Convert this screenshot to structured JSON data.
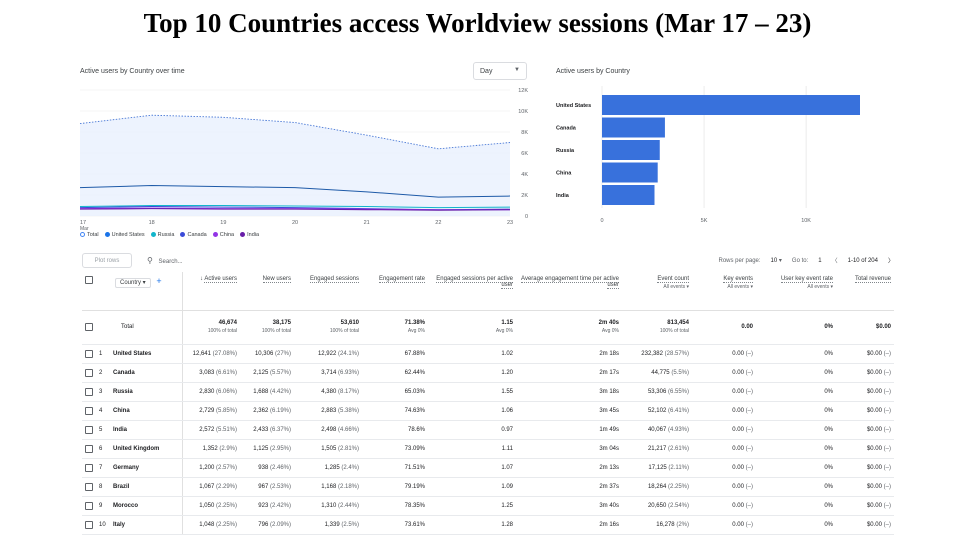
{
  "title": "Top 10 Countries access Worldview sessions (Mar 17 – 23)",
  "line_card": {
    "label": "Active users by Country over time",
    "dropdown": "Day",
    "y_ticks": [
      "12K",
      "10K",
      "8K",
      "6K",
      "4K",
      "2K",
      "0"
    ],
    "x_ticks": [
      "17",
      "18",
      "19",
      "20",
      "21",
      "22",
      "23"
    ],
    "x_month": "Mar",
    "legend": [
      {
        "label": "Total",
        "color": "#ffffff",
        "stroke": "#4285f4"
      },
      {
        "label": "United States",
        "color": "#1a73e8"
      },
      {
        "label": "Russia",
        "color": "#12b5cb"
      },
      {
        "label": "Canada",
        "color": "#3b4bd8"
      },
      {
        "label": "China",
        "color": "#9334e6"
      },
      {
        "label": "India",
        "color": "#681da8"
      }
    ]
  },
  "bar_card": {
    "label": "Active users by Country",
    "x_ticks": [
      "0",
      "5K",
      "10K"
    ]
  },
  "chart_data": [
    {
      "type": "line",
      "x": [
        "17",
        "18",
        "19",
        "20",
        "21",
        "22",
        "23"
      ],
      "ylim": [
        0,
        12000
      ],
      "series": [
        {
          "name": "Total",
          "values": [
            8800,
            9600,
            9400,
            8900,
            7700,
            6400,
            7000
          ]
        },
        {
          "name": "United States",
          "values": [
            2700,
            2900,
            2800,
            2700,
            2300,
            1800,
            1900
          ]
        },
        {
          "name": "Russia",
          "values": [
            900,
            1000,
            1000,
            950,
            900,
            800,
            850
          ]
        },
        {
          "name": "Canada",
          "values": [
            800,
            900,
            850,
            800,
            700,
            600,
            650
          ]
        },
        {
          "name": "China",
          "values": [
            700,
            750,
            700,
            700,
            650,
            600,
            600
          ]
        },
        {
          "name": "India",
          "values": [
            650,
            700,
            650,
            650,
            600,
            550,
            600
          ]
        }
      ]
    },
    {
      "type": "bar",
      "categories": [
        "United States",
        "Canada",
        "Russia",
        "China",
        "India"
      ],
      "values": [
        12641,
        3083,
        2830,
        2729,
        2572
      ],
      "xlim": [
        0,
        12641
      ]
    }
  ],
  "toolbar": {
    "plot_rows": "Plot rows",
    "search_placeholder": "Search...",
    "rows_per_page_label": "Rows per page:",
    "rows_per_page": "10",
    "goto_label": "Go to:",
    "goto_value": "1",
    "range": "1-10 of 204"
  },
  "table": {
    "dimension": "Country",
    "headers": {
      "active_users": "Active users",
      "new_users": "New users",
      "engaged_sessions": "Engaged sessions",
      "engagement_rate": "Engagement rate",
      "engaged_per_user": "Engaged sessions per active user",
      "avg_engagement": "Average engagement time per active user",
      "event_count": "Event count",
      "event_count_sub": "All events",
      "key_events": "Key events",
      "key_events_sub": "All events",
      "user_key_rate": "User key event rate",
      "user_key_sub": "All events",
      "total_revenue": "Total revenue"
    },
    "total": {
      "label": "Total",
      "active_users": "46,674",
      "active_users_sub": "100% of total",
      "new_users": "38,175",
      "new_users_sub": "100% of total",
      "engaged_sessions": "53,610",
      "engaged_sessions_sub": "100% of total",
      "engagement_rate": "71.38%",
      "engagement_rate_sub": "Avg 0%",
      "engaged_per_user": "1.15",
      "engaged_per_user_sub": "Avg 0%",
      "avg_engagement": "2m 40s",
      "avg_engagement_sub": "Avg 0%",
      "event_count": "813,454",
      "event_count_sub": "100% of total",
      "key_events": "0.00",
      "user_key_rate": "0%",
      "total_revenue": "$0.00"
    },
    "rows": [
      {
        "n": "1",
        "country": "United States",
        "au": "12,641",
        "au_p": "(27.08%)",
        "nu": "10,306",
        "nu_p": "(27%)",
        "es": "12,922",
        "es_p": "(24.1%)",
        "er": "67.88%",
        "epu": "1.02",
        "aet": "2m 18s",
        "ec": "232,382",
        "ec_p": "(28.57%)",
        "ke": "0.00",
        "ke_p": "(–)",
        "ukr": "0%",
        "tr": "$0.00",
        "tr_p": "(–)"
      },
      {
        "n": "2",
        "country": "Canada",
        "au": "3,083",
        "au_p": "(6.61%)",
        "nu": "2,125",
        "nu_p": "(5.57%)",
        "es": "3,714",
        "es_p": "(6.93%)",
        "er": "62.44%",
        "epu": "1.20",
        "aet": "2m 17s",
        "ec": "44,775",
        "ec_p": "(5.5%)",
        "ke": "0.00",
        "ke_p": "(–)",
        "ukr": "0%",
        "tr": "$0.00",
        "tr_p": "(–)"
      },
      {
        "n": "3",
        "country": "Russia",
        "au": "2,830",
        "au_p": "(6.06%)",
        "nu": "1,688",
        "nu_p": "(4.42%)",
        "es": "4,380",
        "es_p": "(8.17%)",
        "er": "65.03%",
        "epu": "1.55",
        "aet": "3m 18s",
        "ec": "53,306",
        "ec_p": "(6.55%)",
        "ke": "0.00",
        "ke_p": "(–)",
        "ukr": "0%",
        "tr": "$0.00",
        "tr_p": "(–)"
      },
      {
        "n": "4",
        "country": "China",
        "au": "2,729",
        "au_p": "(5.85%)",
        "nu": "2,362",
        "nu_p": "(6.19%)",
        "es": "2,883",
        "es_p": "(5.38%)",
        "er": "74.63%",
        "epu": "1.06",
        "aet": "3m 45s",
        "ec": "52,102",
        "ec_p": "(6.41%)",
        "ke": "0.00",
        "ke_p": "(–)",
        "ukr": "0%",
        "tr": "$0.00",
        "tr_p": "(–)"
      },
      {
        "n": "5",
        "country": "India",
        "au": "2,572",
        "au_p": "(5.51%)",
        "nu": "2,433",
        "nu_p": "(6.37%)",
        "es": "2,498",
        "es_p": "(4.66%)",
        "er": "78.6%",
        "epu": "0.97",
        "aet": "1m 49s",
        "ec": "40,067",
        "ec_p": "(4.93%)",
        "ke": "0.00",
        "ke_p": "(–)",
        "ukr": "0%",
        "tr": "$0.00",
        "tr_p": "(–)"
      },
      {
        "n": "6",
        "country": "United Kingdom",
        "au": "1,352",
        "au_p": "(2.9%)",
        "nu": "1,125",
        "nu_p": "(2.95%)",
        "es": "1,505",
        "es_p": "(2.81%)",
        "er": "73.09%",
        "epu": "1.11",
        "aet": "3m 04s",
        "ec": "21,217",
        "ec_p": "(2.61%)",
        "ke": "0.00",
        "ke_p": "(–)",
        "ukr": "0%",
        "tr": "$0.00",
        "tr_p": "(–)"
      },
      {
        "n": "7",
        "country": "Germany",
        "au": "1,200",
        "au_p": "(2.57%)",
        "nu": "938",
        "nu_p": "(2.46%)",
        "es": "1,285",
        "es_p": "(2.4%)",
        "er": "71.51%",
        "epu": "1.07",
        "aet": "2m 13s",
        "ec": "17,125",
        "ec_p": "(2.11%)",
        "ke": "0.00",
        "ke_p": "(–)",
        "ukr": "0%",
        "tr": "$0.00",
        "tr_p": "(–)"
      },
      {
        "n": "8",
        "country": "Brazil",
        "au": "1,067",
        "au_p": "(2.29%)",
        "nu": "967",
        "nu_p": "(2.53%)",
        "es": "1,168",
        "es_p": "(2.18%)",
        "er": "79.19%",
        "epu": "1.09",
        "aet": "2m 37s",
        "ec": "18,264",
        "ec_p": "(2.25%)",
        "ke": "0.00",
        "ke_p": "(–)",
        "ukr": "0%",
        "tr": "$0.00",
        "tr_p": "(–)"
      },
      {
        "n": "9",
        "country": "Morocco",
        "au": "1,050",
        "au_p": "(2.25%)",
        "nu": "923",
        "nu_p": "(2.42%)",
        "es": "1,310",
        "es_p": "(2.44%)",
        "er": "78.35%",
        "epu": "1.25",
        "aet": "3m 40s",
        "ec": "20,650",
        "ec_p": "(2.54%)",
        "ke": "0.00",
        "ke_p": "(–)",
        "ukr": "0%",
        "tr": "$0.00",
        "tr_p": "(–)"
      },
      {
        "n": "10",
        "country": "Italy",
        "au": "1,048",
        "au_p": "(2.25%)",
        "nu": "796",
        "nu_p": "(2.09%)",
        "es": "1,339",
        "es_p": "(2.5%)",
        "er": "73.61%",
        "epu": "1.28",
        "aet": "2m 16s",
        "ec": "16,278",
        "ec_p": "(2%)",
        "ke": "0.00",
        "ke_p": "(–)",
        "ukr": "0%",
        "tr": "$0.00",
        "tr_p": "(–)"
      }
    ]
  }
}
